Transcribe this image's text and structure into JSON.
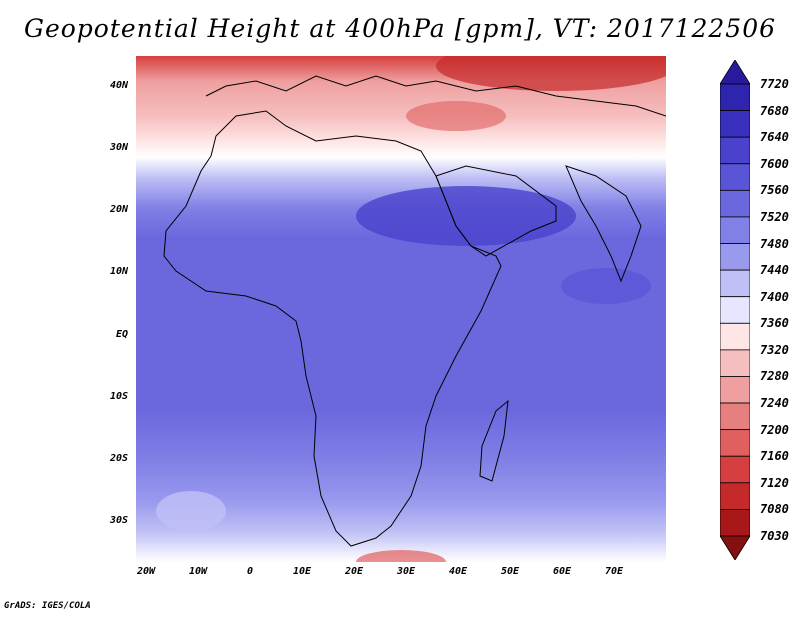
{
  "title": "Geopotential Height at 400hPa [gpm], VT: 2017122506",
  "credit": "GrADS: IGES/COLA",
  "map": {
    "lat_labels": [
      "40N",
      "30N",
      "20N",
      "10N",
      "EQ",
      "10S",
      "20S",
      "30S"
    ],
    "lon_labels": [
      "20W",
      "10W",
      "0",
      "10E",
      "20E",
      "30E",
      "40E",
      "50E",
      "60E",
      "70E"
    ],
    "lon_range": [
      -22,
      80
    ],
    "lat_range": [
      -37,
      45
    ]
  },
  "colorbar": {
    "levels": [
      "7720",
      "7680",
      "7640",
      "7600",
      "7560",
      "7520",
      "7480",
      "7440",
      "7400",
      "7360",
      "7320",
      "7280",
      "7240",
      "7200",
      "7160",
      "7120",
      "7080",
      "7030"
    ],
    "colors": [
      "#281a9c",
      "#2f24ae",
      "#3a30be",
      "#4a42cc",
      "#5a55d6",
      "#6b68de",
      "#8080e6",
      "#9999ee",
      "#c0c0f6",
      "#e6e6ff",
      "#ffe6e6",
      "#f6bfbf",
      "#ef9f9f",
      "#e67f7f",
      "#e05f5f",
      "#d63f3f",
      "#c52a2a",
      "#a81818",
      "#861010"
    ]
  }
}
